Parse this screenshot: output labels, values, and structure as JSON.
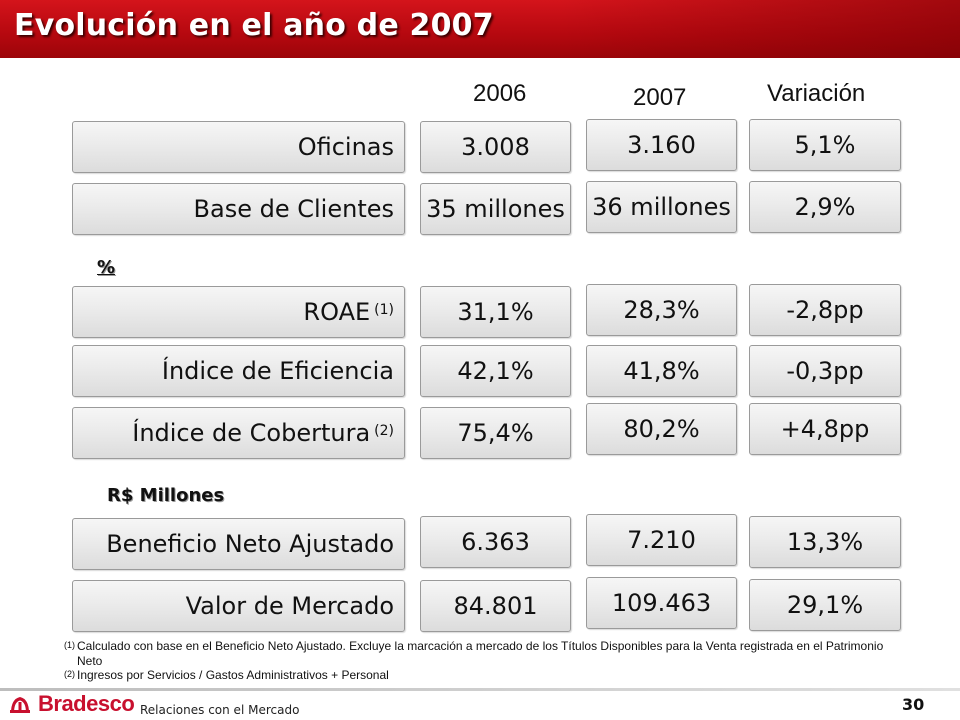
{
  "title": "Evolución en el año de 2007",
  "columns": {
    "y2006": "2006",
    "y2007": "2007",
    "variation": "Variación"
  },
  "sections": {
    "percent": "%",
    "millions": "R$ Millones"
  },
  "rows": [
    {
      "label": "Oficinas",
      "sup": "",
      "v2006": "3.008",
      "v2007": "3.160",
      "variation": "5,1%"
    },
    {
      "label": "Base de Clientes",
      "sup": "",
      "v2006": "35 millones",
      "v2007": "36 millones",
      "variation": "2,9%"
    },
    {
      "label": "ROAE",
      "sup": "(1)",
      "v2006": "31,1%",
      "v2007": "28,3%",
      "variation": "-2,8pp"
    },
    {
      "label": "Índice de Eficiencia",
      "sup": "",
      "v2006": "42,1%",
      "v2007": "41,8%",
      "variation": "-0,3pp"
    },
    {
      "label": "Índice de Cobertura",
      "sup": "(2)",
      "v2006": "75,4%",
      "v2007": "80,2%",
      "variation": "+4,8pp"
    },
    {
      "label": "Beneficio Neto Ajustado",
      "sup": "",
      "v2006": "6.363",
      "v2007": "7.210",
      "variation": "13,3%"
    },
    {
      "label": "Valor de Mercado",
      "sup": "",
      "v2006": "84.801",
      "v2007": "109.463",
      "variation": "29,1%"
    }
  ],
  "notes": [
    {
      "mark": "(1)",
      "text": "Calculado con base en el Beneficio Neto Ajustado. Excluye la marcación a mercado de los Títulos Disponibles para la Venta registrada en el Patrimonio Neto"
    },
    {
      "mark": "(2)",
      "text": "Ingresos por Servicios / Gastos Administrativos + Personal"
    }
  ],
  "footer": {
    "brand": "Bradesco",
    "department": "Relaciones con el Mercado",
    "page": "30"
  },
  "colors": {
    "title_bar": "#c0101a",
    "brand_red": "#c8102e"
  }
}
